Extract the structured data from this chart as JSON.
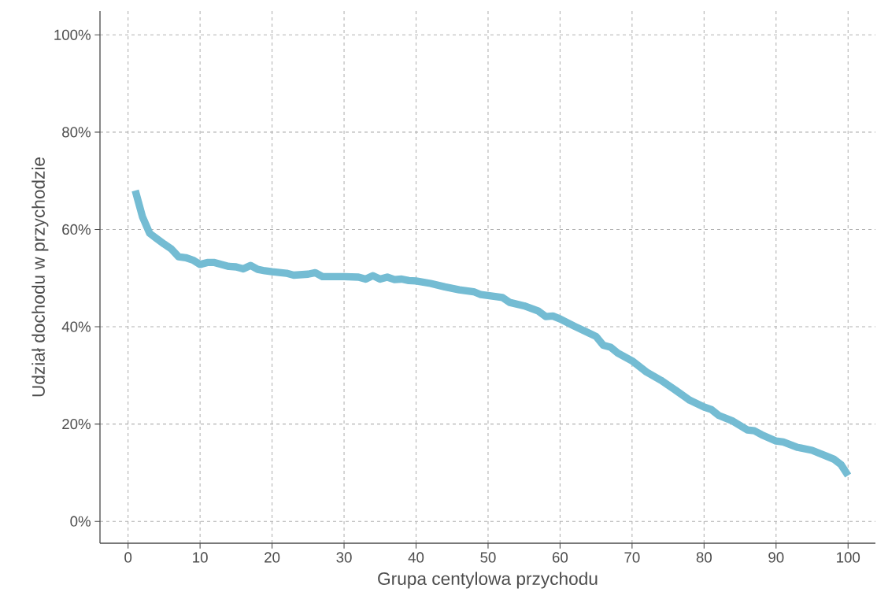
{
  "chart_data": {
    "type": "line",
    "xlabel": "Grupa centylowa przychodu",
    "ylabel": "Udział dochodu w przychodzie",
    "x": [
      1,
      2,
      3,
      4,
      5,
      6,
      7,
      8,
      9,
      10,
      11,
      12,
      13,
      14,
      15,
      16,
      17,
      18,
      19,
      20,
      22,
      23,
      25,
      26,
      27,
      30,
      32,
      33,
      34,
      35,
      36,
      37,
      38,
      39,
      40,
      42,
      44,
      46,
      48,
      49,
      50,
      52,
      53,
      55,
      57,
      58,
      59,
      60,
      62,
      64,
      65,
      66,
      67,
      68,
      70,
      72,
      74,
      76,
      78,
      80,
      81,
      82,
      84,
      86,
      87,
      88,
      90,
      91,
      93,
      95,
      97,
      98,
      99,
      100
    ],
    "values": [
      68.0,
      62.6,
      59.2,
      58.1,
      57.0,
      56.0,
      54.4,
      54.2,
      53.7,
      52.8,
      53.2,
      53.2,
      52.8,
      52.4,
      52.3,
      51.9,
      52.6,
      51.8,
      51.5,
      51.3,
      51.0,
      50.6,
      50.8,
      51.1,
      50.3,
      50.3,
      50.2,
      49.8,
      50.5,
      49.8,
      50.2,
      49.7,
      49.8,
      49.5,
      49.4,
      48.9,
      48.2,
      47.6,
      47.2,
      46.6,
      46.4,
      46.0,
      45.0,
      44.3,
      43.2,
      42.1,
      42.2,
      41.6,
      40.1,
      38.7,
      38.0,
      36.2,
      35.8,
      34.6,
      33.0,
      30.7,
      29.0,
      27.0,
      24.9,
      23.5,
      23.0,
      21.8,
      20.6,
      18.8,
      18.6,
      17.8,
      16.5,
      16.3,
      15.2,
      14.6,
      13.4,
      12.8,
      11.7,
      9.4
    ],
    "color": "#74bcd3",
    "xlim": [
      -3.9,
      103.8
    ],
    "ylim": [
      -4.5,
      104.9
    ],
    "xticks": [
      0,
      10,
      20,
      30,
      40,
      50,
      60,
      70,
      80,
      90,
      100
    ],
    "yticks": [
      {
        "value": 0,
        "label": "0%"
      },
      {
        "value": 20,
        "label": "20%"
      },
      {
        "value": 40,
        "label": "40%"
      },
      {
        "value": 60,
        "label": "60%"
      },
      {
        "value": 80,
        "label": "80%"
      },
      {
        "value": 100,
        "label": "100%"
      }
    ],
    "grid": true,
    "marker": "none",
    "line_style": "solid"
  }
}
